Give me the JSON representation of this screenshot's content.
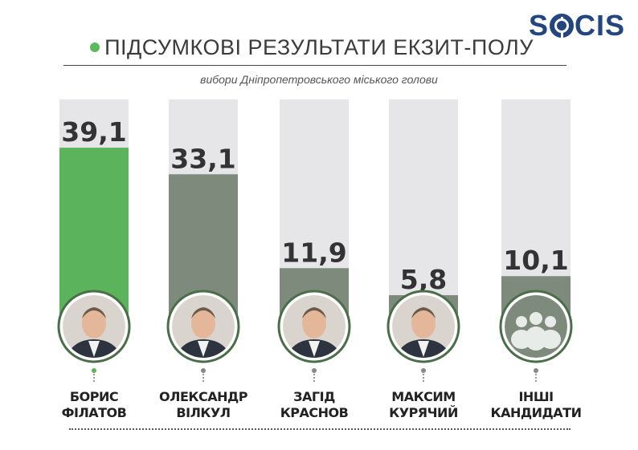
{
  "header": {
    "logo_text": "SOCIS",
    "title": "ПІДСУМКОВІ РЕЗУЛЬТАТИ ЕКЗИТ-ПОЛУ",
    "subtitle": "вибори Дніпропетровського міського голови"
  },
  "colors": {
    "winner_bar": "#5bb35b",
    "bar": "#7d8a7c",
    "track": "#e6e6e8",
    "photo_ring": "#4a6e4a",
    "logo": "#24467f"
  },
  "chart_data": {
    "type": "bar",
    "ylim": [
      0,
      50
    ],
    "categories": [
      "БОРИС ФІЛАТОВ",
      "ОЛЕКСАНДР ВІЛКУЛ",
      "ЗАГІД КРАСНОВ",
      "МАКСИМ КУРЯЧИЙ",
      "ІНШІ КАНДИДАТИ"
    ],
    "values": [
      39.1,
      33.1,
      11.9,
      5.8,
      10.1
    ],
    "value_labels": [
      "39,1",
      "33,1",
      "11,9",
      "5,8",
      "10,1"
    ]
  },
  "candidates": [
    {
      "name_line1": "БОРИС",
      "name_line2": "ФІЛАТОВ",
      "photo_icon": "person-photo-icon",
      "winner": true
    },
    {
      "name_line1": "ОЛЕКСАНДР",
      "name_line2": "ВІЛКУЛ",
      "photo_icon": "person-photo-icon",
      "winner": false
    },
    {
      "name_line1": "ЗАГІД",
      "name_line2": "КРАСНОВ",
      "photo_icon": "person-photo-icon",
      "winner": false
    },
    {
      "name_line1": "МАКСИМ",
      "name_line2": "КУРЯЧИЙ",
      "photo_icon": "person-photo-icon",
      "winner": false
    },
    {
      "name_line1": "ІНШІ",
      "name_line2": "КАНДИДАТИ",
      "photo_icon": "group-icon",
      "winner": false
    }
  ]
}
